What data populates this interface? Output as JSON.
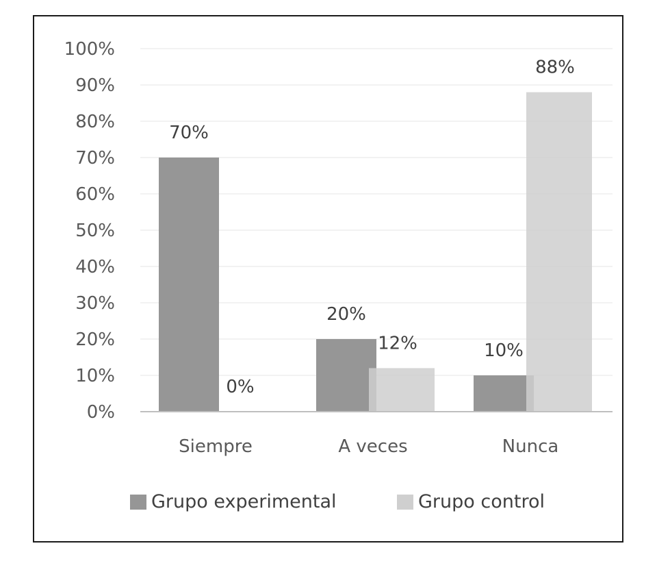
{
  "chart_data": {
    "type": "bar",
    "categories": [
      "Siempre",
      "A veces",
      "Nunca"
    ],
    "series": [
      {
        "name": "Grupo experimental",
        "values": [
          70,
          20,
          10
        ],
        "labels": [
          "70%",
          "20%",
          "10%"
        ],
        "color": "#969696"
      },
      {
        "name": "Grupo control",
        "values": [
          0,
          12,
          88
        ],
        "labels": [
          "0%",
          "12%",
          "88%"
        ],
        "color": "#cfcfcf"
      }
    ],
    "yticks": [
      "0%",
      "10%",
      "20%",
      "30%",
      "40%",
      "50%",
      "60%",
      "70%",
      "80%",
      "90%",
      "100%"
    ],
    "ylim": [
      0,
      100
    ],
    "grid": true,
    "legend_position": "bottom",
    "title": "",
    "xlabel": "",
    "ylabel": ""
  }
}
